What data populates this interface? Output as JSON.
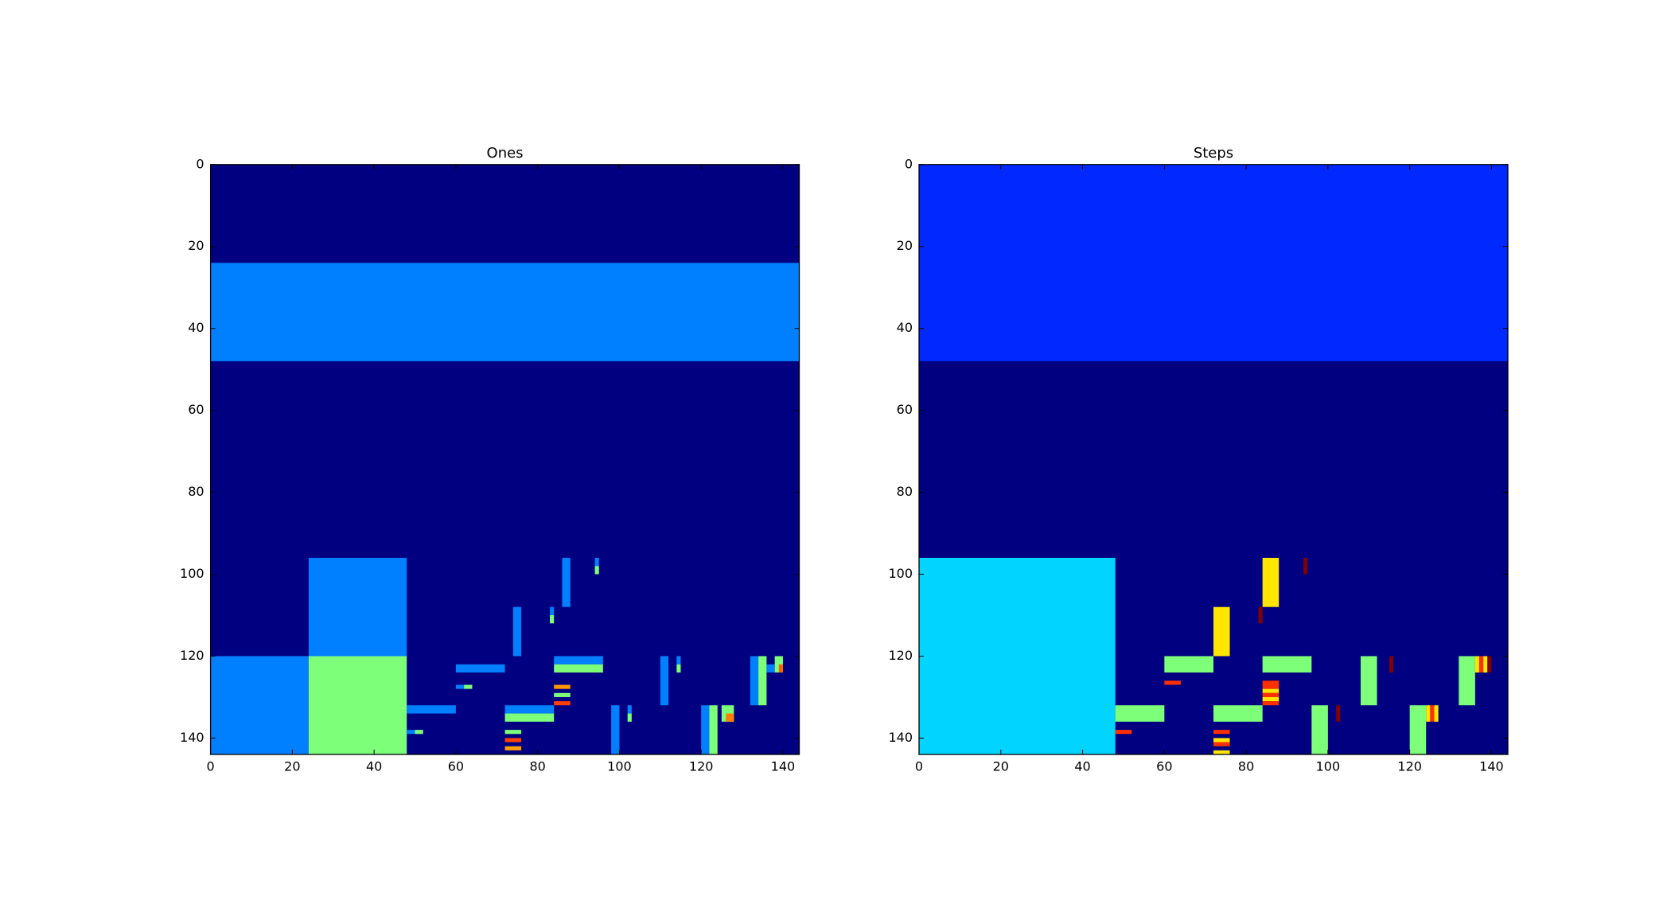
{
  "chart_data": [
    {
      "type": "heatmap",
      "title": "Ones",
      "xlim": [
        0,
        144
      ],
      "ylim": [
        144,
        0
      ],
      "xticks": [
        0,
        20,
        40,
        60,
        80,
        100,
        120,
        140
      ],
      "yticks": [
        0,
        20,
        40,
        60,
        80,
        100,
        120,
        140
      ],
      "background": "#000080",
      "cells": [
        {
          "x": [
            0,
            144
          ],
          "y": [
            24,
            48
          ],
          "color": "#0080ff"
        },
        {
          "x": [
            24,
            48
          ],
          "y": [
            96,
            120
          ],
          "color": "#0080ff"
        },
        {
          "x": [
            0,
            24
          ],
          "y": [
            120,
            144
          ],
          "color": "#0080ff"
        },
        {
          "x": [
            24,
            48
          ],
          "y": [
            120,
            144
          ],
          "color": "#7dff7a"
        },
        {
          "x": [
            60,
            72
          ],
          "y": [
            122,
            124
          ],
          "color": "#0080ff"
        },
        {
          "x": [
            60,
            62
          ],
          "y": [
            127,
            128
          ],
          "color": "#0080ff"
        },
        {
          "x": [
            62,
            64
          ],
          "y": [
            127,
            128
          ],
          "color": "#7dff7a"
        },
        {
          "x": [
            48,
            60
          ],
          "y": [
            132,
            134
          ],
          "color": "#0080ff"
        },
        {
          "x": [
            48,
            50
          ],
          "y": [
            138,
            139
          ],
          "color": "#0080ff"
        },
        {
          "x": [
            50,
            52
          ],
          "y": [
            138,
            139
          ],
          "color": "#7dff7a"
        },
        {
          "x": [
            72,
            84
          ],
          "y": [
            132,
            134
          ],
          "color": "#0080ff"
        },
        {
          "x": [
            72,
            84
          ],
          "y": [
            134,
            136
          ],
          "color": "#7dff7a"
        },
        {
          "x": [
            84,
            96
          ],
          "y": [
            120,
            122
          ],
          "color": "#0080ff"
        },
        {
          "x": [
            84,
            96
          ],
          "y": [
            122,
            124
          ],
          "color": "#7dff7a"
        },
        {
          "x": [
            84,
            88
          ],
          "y": [
            127,
            128
          ],
          "color": "#ff9900"
        },
        {
          "x": [
            84,
            88
          ],
          "y": [
            129,
            130
          ],
          "color": "#7dff7a"
        },
        {
          "x": [
            84,
            88
          ],
          "y": [
            131,
            132
          ],
          "color": "#ff4000"
        },
        {
          "x": [
            72,
            76
          ],
          "y": [
            138,
            139
          ],
          "color": "#7dff7a"
        },
        {
          "x": [
            72,
            76
          ],
          "y": [
            140,
            141
          ],
          "color": "#ff4000"
        },
        {
          "x": [
            72,
            76
          ],
          "y": [
            142,
            143
          ],
          "color": "#ffa000"
        },
        {
          "x": [
            86,
            88
          ],
          "y": [
            96,
            108
          ],
          "color": "#0080ff"
        },
        {
          "x": [
            74,
            76
          ],
          "y": [
            108,
            120
          ],
          "color": "#0080ff"
        },
        {
          "x": [
            94,
            95
          ],
          "y": [
            96,
            98
          ],
          "color": "#0080ff"
        },
        {
          "x": [
            94,
            95
          ],
          "y": [
            98,
            100
          ],
          "color": "#7dff7a"
        },
        {
          "x": [
            83,
            84
          ],
          "y": [
            108,
            110
          ],
          "color": "#0080ff"
        },
        {
          "x": [
            83,
            84
          ],
          "y": [
            110,
            112
          ],
          "color": "#7dff7a"
        },
        {
          "x": [
            98,
            100
          ],
          "y": [
            132,
            144
          ],
          "color": "#0080ff"
        },
        {
          "x": [
            102,
            103
          ],
          "y": [
            132,
            134
          ],
          "color": "#0080ff"
        },
        {
          "x": [
            102,
            103
          ],
          "y": [
            134,
            136
          ],
          "color": "#7dff7a"
        },
        {
          "x": [
            110,
            112
          ],
          "y": [
            120,
            132
          ],
          "color": "#0080ff"
        },
        {
          "x": [
            114,
            115
          ],
          "y": [
            120,
            122
          ],
          "color": "#0080ff"
        },
        {
          "x": [
            114,
            115
          ],
          "y": [
            122,
            124
          ],
          "color": "#7dff7a"
        },
        {
          "x": [
            120,
            122
          ],
          "y": [
            132,
            144
          ],
          "color": "#0080ff"
        },
        {
          "x": [
            122,
            124
          ],
          "y": [
            132,
            144
          ],
          "color": "#7dff7a"
        },
        {
          "x": [
            125,
            128
          ],
          "y": [
            132,
            136
          ],
          "color": "#7dff7a"
        },
        {
          "x": [
            126,
            128
          ],
          "y": [
            134,
            136
          ],
          "color": "#ff8000"
        },
        {
          "x": [
            132,
            134
          ],
          "y": [
            120,
            132
          ],
          "color": "#0080ff"
        },
        {
          "x": [
            134,
            136
          ],
          "y": [
            120,
            132
          ],
          "color": "#7dff7a"
        },
        {
          "x": [
            136,
            138
          ],
          "y": [
            122,
            124
          ],
          "color": "#0080ff"
        },
        {
          "x": [
            138,
            140
          ],
          "y": [
            120,
            124
          ],
          "color": "#7dff7a"
        },
        {
          "x": [
            139,
            140
          ],
          "y": [
            122,
            124
          ],
          "color": "#ff6000"
        }
      ]
    },
    {
      "type": "heatmap",
      "title": "Steps",
      "xlim": [
        0,
        144
      ],
      "ylim": [
        144,
        0
      ],
      "xticks": [
        0,
        20,
        40,
        60,
        80,
        100,
        120,
        140
      ],
      "yticks": [
        0,
        20,
        40,
        60,
        80,
        100,
        120,
        140
      ],
      "background": "#000080",
      "cells": [
        {
          "x": [
            0,
            144
          ],
          "y": [
            0,
            48
          ],
          "color": "#0028ff"
        },
        {
          "x": [
            0,
            48
          ],
          "y": [
            96,
            144
          ],
          "color": "#00d4ff"
        },
        {
          "x": [
            84,
            88
          ],
          "y": [
            96,
            108
          ],
          "color": "#ffe600"
        },
        {
          "x": [
            72,
            76
          ],
          "y": [
            108,
            120
          ],
          "color": "#ffe600"
        },
        {
          "x": [
            60,
            72
          ],
          "y": [
            120,
            124
          ],
          "color": "#7dff7a"
        },
        {
          "x": [
            84,
            96
          ],
          "y": [
            120,
            124
          ],
          "color": "#7dff7a"
        },
        {
          "x": [
            48,
            60
          ],
          "y": [
            132,
            136
          ],
          "color": "#7dff7a"
        },
        {
          "x": [
            72,
            84
          ],
          "y": [
            132,
            136
          ],
          "color": "#7dff7a"
        },
        {
          "x": [
            96,
            100
          ],
          "y": [
            132,
            144
          ],
          "color": "#7dff7a"
        },
        {
          "x": [
            108,
            112
          ],
          "y": [
            120,
            132
          ],
          "color": "#7dff7a"
        },
        {
          "x": [
            120,
            124
          ],
          "y": [
            132,
            144
          ],
          "color": "#7dff7a"
        },
        {
          "x": [
            132,
            136
          ],
          "y": [
            120,
            132
          ],
          "color": "#7dff7a"
        },
        {
          "x": [
            94,
            95
          ],
          "y": [
            96,
            100
          ],
          "color": "#800000"
        },
        {
          "x": [
            83,
            84
          ],
          "y": [
            108,
            112
          ],
          "color": "#800000"
        },
        {
          "x": [
            115,
            116
          ],
          "y": [
            120,
            124
          ],
          "color": "#800000"
        },
        {
          "x": [
            102,
            103
          ],
          "y": [
            132,
            136
          ],
          "color": "#800000"
        },
        {
          "x": [
            60,
            64
          ],
          "y": [
            126,
            127
          ],
          "color": "#ff3000"
        },
        {
          "x": [
            48,
            52
          ],
          "y": [
            138,
            139
          ],
          "color": "#ff3000"
        },
        {
          "x": [
            84,
            88
          ],
          "y": [
            126,
            128
          ],
          "color": "#ff3000"
        },
        {
          "x": [
            84,
            88
          ],
          "y": [
            128,
            129
          ],
          "color": "#ffe600"
        },
        {
          "x": [
            84,
            88
          ],
          "y": [
            129,
            130
          ],
          "color": "#ff3000"
        },
        {
          "x": [
            84,
            88
          ],
          "y": [
            130,
            131
          ],
          "color": "#ffe600"
        },
        {
          "x": [
            84,
            88
          ],
          "y": [
            131,
            132
          ],
          "color": "#ff3000"
        },
        {
          "x": [
            72,
            76
          ],
          "y": [
            138,
            139
          ],
          "color": "#ff3000"
        },
        {
          "x": [
            72,
            76
          ],
          "y": [
            140,
            141
          ],
          "color": "#ffe600"
        },
        {
          "x": [
            72,
            76
          ],
          "y": [
            141,
            142
          ],
          "color": "#ff3000"
        },
        {
          "x": [
            72,
            76
          ],
          "y": [
            143,
            144
          ],
          "color": "#ffe600"
        },
        {
          "x": [
            136,
            137
          ],
          "y": [
            120,
            124
          ],
          "color": "#ffe600"
        },
        {
          "x": [
            137,
            138
          ],
          "y": [
            120,
            124
          ],
          "color": "#ff3000"
        },
        {
          "x": [
            138,
            139
          ],
          "y": [
            120,
            124
          ],
          "color": "#ffe600"
        },
        {
          "x": [
            139,
            140
          ],
          "y": [
            120,
            124
          ],
          "color": "#800000"
        },
        {
          "x": [
            124,
            125
          ],
          "y": [
            132,
            136
          ],
          "color": "#ffe600"
        },
        {
          "x": [
            125,
            126
          ],
          "y": [
            132,
            136
          ],
          "color": "#ff3000"
        },
        {
          "x": [
            126,
            127
          ],
          "y": [
            132,
            136
          ],
          "color": "#ffe600"
        }
      ]
    }
  ]
}
